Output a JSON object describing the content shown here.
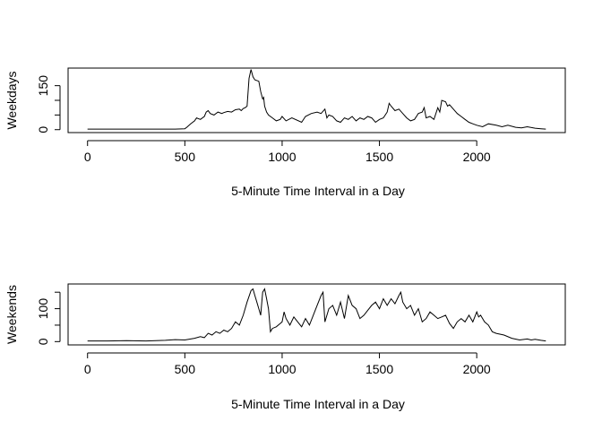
{
  "chart_data": [
    {
      "type": "line",
      "xlabel": "5-Minute Time Interval in a Day",
      "ylabel": "Weekdays",
      "xlim": [
        -100,
        2455
      ],
      "ylim": [
        -10,
        210
      ],
      "xticks": [
        0,
        500,
        1000,
        1500,
        2000
      ],
      "yticks": [
        0,
        50,
        100,
        150
      ],
      "ytick_labels": [
        "0",
        "",
        "",
        "150"
      ],
      "grid": false,
      "series": [
        {
          "x": [
            0,
            100,
            200,
            300,
            400,
            450,
            500,
            510,
            530,
            550,
            560,
            580,
            600,
            610,
            620,
            630,
            650,
            670,
            690,
            700,
            720,
            740,
            760,
            780,
            790,
            800,
            810,
            820,
            830,
            835,
            840,
            850,
            860,
            880,
            890,
            900,
            905,
            910,
            920,
            930,
            950,
            970,
            990,
            1000,
            1020,
            1050,
            1100,
            1120,
            1150,
            1180,
            1200,
            1220,
            1230,
            1240,
            1260,
            1280,
            1300,
            1320,
            1340,
            1360,
            1380,
            1400,
            1420,
            1440,
            1460,
            1480,
            1500,
            1520,
            1540,
            1550,
            1560,
            1580,
            1600,
            1620,
            1640,
            1660,
            1680,
            1700,
            1720,
            1730,
            1740,
            1760,
            1780,
            1800,
            1810,
            1820,
            1840,
            1850,
            1860,
            1880,
            1900,
            1920,
            1940,
            1960,
            1980,
            2000,
            2030,
            2060,
            2100,
            2130,
            2160,
            2200,
            2230,
            2260,
            2300,
            2330,
            2355
          ],
          "y": [
            2,
            2,
            2,
            2,
            2,
            2,
            3,
            8,
            20,
            30,
            40,
            35,
            45,
            60,
            65,
            55,
            50,
            60,
            55,
            58,
            62,
            60,
            68,
            70,
            65,
            72,
            75,
            80,
            175,
            190,
            205,
            180,
            170,
            165,
            130,
            105,
            110,
            80,
            60,
            50,
            40,
            30,
            35,
            45,
            30,
            40,
            25,
            45,
            55,
            60,
            55,
            70,
            40,
            50,
            45,
            30,
            25,
            40,
            35,
            45,
            30,
            40,
            35,
            45,
            40,
            25,
            35,
            40,
            60,
            90,
            80,
            65,
            70,
            55,
            40,
            30,
            35,
            55,
            60,
            75,
            40,
            45,
            35,
            75,
            60,
            100,
            95,
            80,
            85,
            70,
            55,
            45,
            35,
            25,
            20,
            15,
            10,
            20,
            15,
            10,
            15,
            8,
            6,
            10,
            5,
            3,
            2
          ]
        }
      ]
    },
    {
      "type": "line",
      "xlabel": "5-Minute Time Interval in a Day",
      "ylabel": "Weekends",
      "xlim": [
        -100,
        2455
      ],
      "ylim": [
        -10,
        175
      ],
      "xticks": [
        0,
        500,
        1000,
        1500,
        2000
      ],
      "yticks": [
        0,
        50,
        100,
        150
      ],
      "ytick_labels": [
        "0",
        "",
        "100",
        ""
      ],
      "grid": false,
      "series": [
        {
          "x": [
            0,
            100,
            200,
            300,
            400,
            450,
            500,
            550,
            580,
            600,
            620,
            640,
            660,
            680,
            700,
            720,
            740,
            760,
            780,
            800,
            820,
            840,
            850,
            860,
            870,
            880,
            890,
            900,
            910,
            920,
            930,
            940,
            950,
            970,
            990,
            1000,
            1010,
            1020,
            1040,
            1060,
            1080,
            1100,
            1120,
            1140,
            1160,
            1180,
            1200,
            1210,
            1220,
            1240,
            1260,
            1280,
            1300,
            1320,
            1340,
            1360,
            1380,
            1400,
            1420,
            1440,
            1460,
            1480,
            1500,
            1520,
            1540,
            1560,
            1580,
            1600,
            1610,
            1620,
            1640,
            1660,
            1680,
            1700,
            1720,
            1740,
            1760,
            1780,
            1800,
            1820,
            1840,
            1860,
            1880,
            1900,
            1920,
            1940,
            1960,
            1980,
            2000,
            2010,
            2020,
            2040,
            2060,
            2080,
            2100,
            2140,
            2180,
            2220,
            2260,
            2280,
            2300,
            2330,
            2355
          ],
          "y": [
            2,
            2,
            3,
            2,
            4,
            6,
            5,
            10,
            15,
            12,
            25,
            20,
            30,
            25,
            35,
            30,
            40,
            60,
            50,
            80,
            120,
            155,
            160,
            140,
            120,
            100,
            80,
            150,
            160,
            130,
            100,
            30,
            40,
            45,
            55,
            60,
            90,
            70,
            50,
            75,
            60,
            45,
            70,
            50,
            80,
            110,
            140,
            150,
            60,
            100,
            110,
            80,
            120,
            70,
            140,
            110,
            100,
            70,
            80,
            95,
            110,
            120,
            100,
            130,
            110,
            130,
            115,
            140,
            150,
            120,
            100,
            110,
            80,
            100,
            60,
            70,
            90,
            80,
            70,
            75,
            80,
            55,
            40,
            60,
            70,
            60,
            80,
            60,
            90,
            75,
            80,
            60,
            50,
            30,
            25,
            20,
            10,
            5,
            8,
            5,
            7,
            4,
            2
          ]
        }
      ]
    }
  ]
}
